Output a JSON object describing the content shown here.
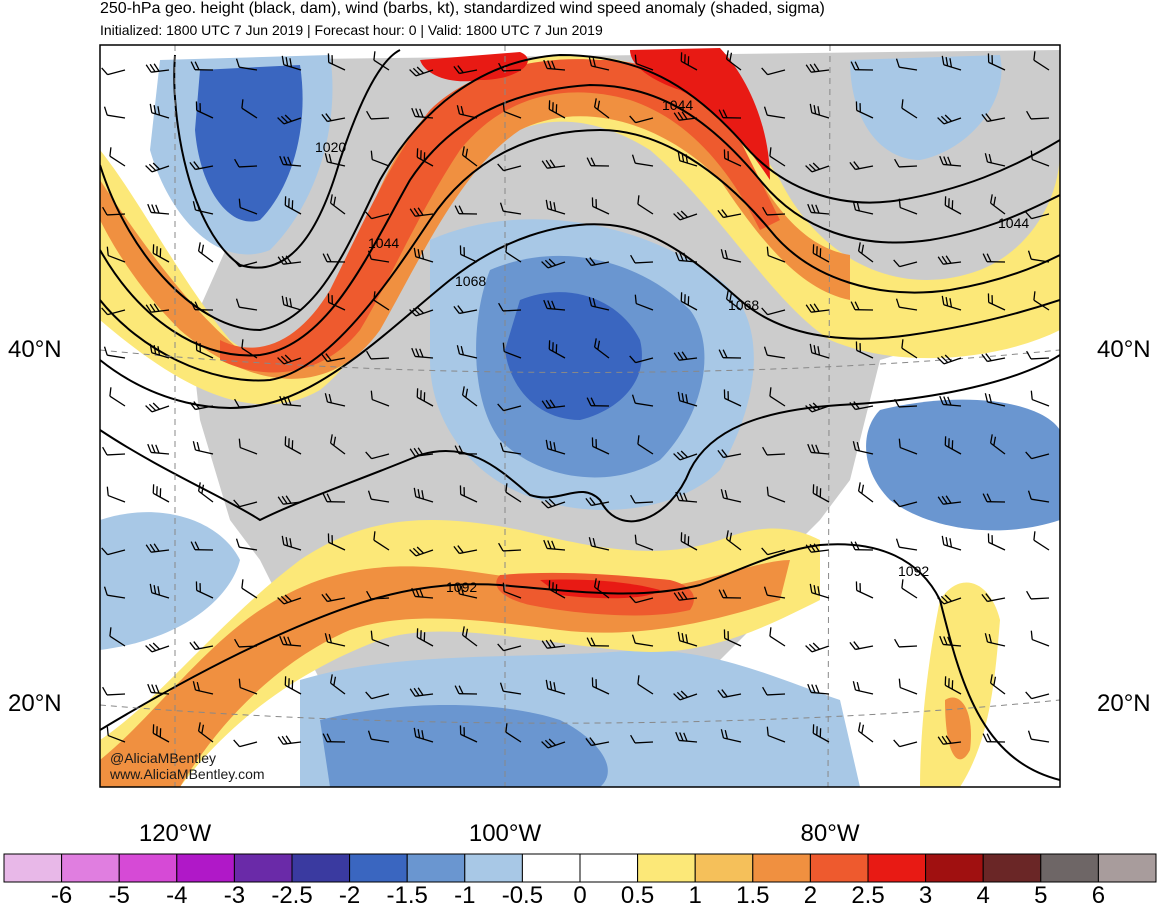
{
  "header": {
    "title": "250-hPa geo. height (black, dam), wind (barbs, kt), standardized wind speed anomaly (shaded, sigma)",
    "subtitle": "Initialized: 1800 UTC 7 Jun 2019 | Forecast hour: 0 | Valid: 1800 UTC 7 Jun 2019"
  },
  "map": {
    "lat_labels": [
      "40°N",
      "20°N"
    ],
    "lon_labels": [
      "120°W",
      "100°W",
      "80°W"
    ],
    "contour_labels": [
      "1020",
      "1044",
      "1044",
      "1068",
      "1068",
      "1044",
      "1092",
      "1092"
    ],
    "contour_color": "#000000",
    "land_color": "#cccccc",
    "watermark": [
      "@AliciaMBentley",
      "www.AliciaMBentley.com"
    ]
  },
  "colorbar": {
    "colors": [
      "#e8b8e8",
      "#e07ee0",
      "#d64ad6",
      "#b018c8",
      "#6a2aa8",
      "#3a3aa0",
      "#3a66c0",
      "#6a96d0",
      "#a8c8e6",
      "#ffffff",
      "#ffffff",
      "#fce878",
      "#f5c05a",
      "#f09040",
      "#ee5a2e",
      "#e81a14",
      "#a01010",
      "#6a2626",
      "#6e6666",
      "#a89c9c"
    ],
    "labels": [
      "-6",
      "-5",
      "-4",
      "-3",
      "-2.5",
      "-2",
      "-1.5",
      "-1",
      "-0.5",
      "0",
      "0.5",
      "1",
      "1.5",
      "2",
      "2.5",
      "3",
      "4",
      "5",
      "6"
    ]
  }
}
